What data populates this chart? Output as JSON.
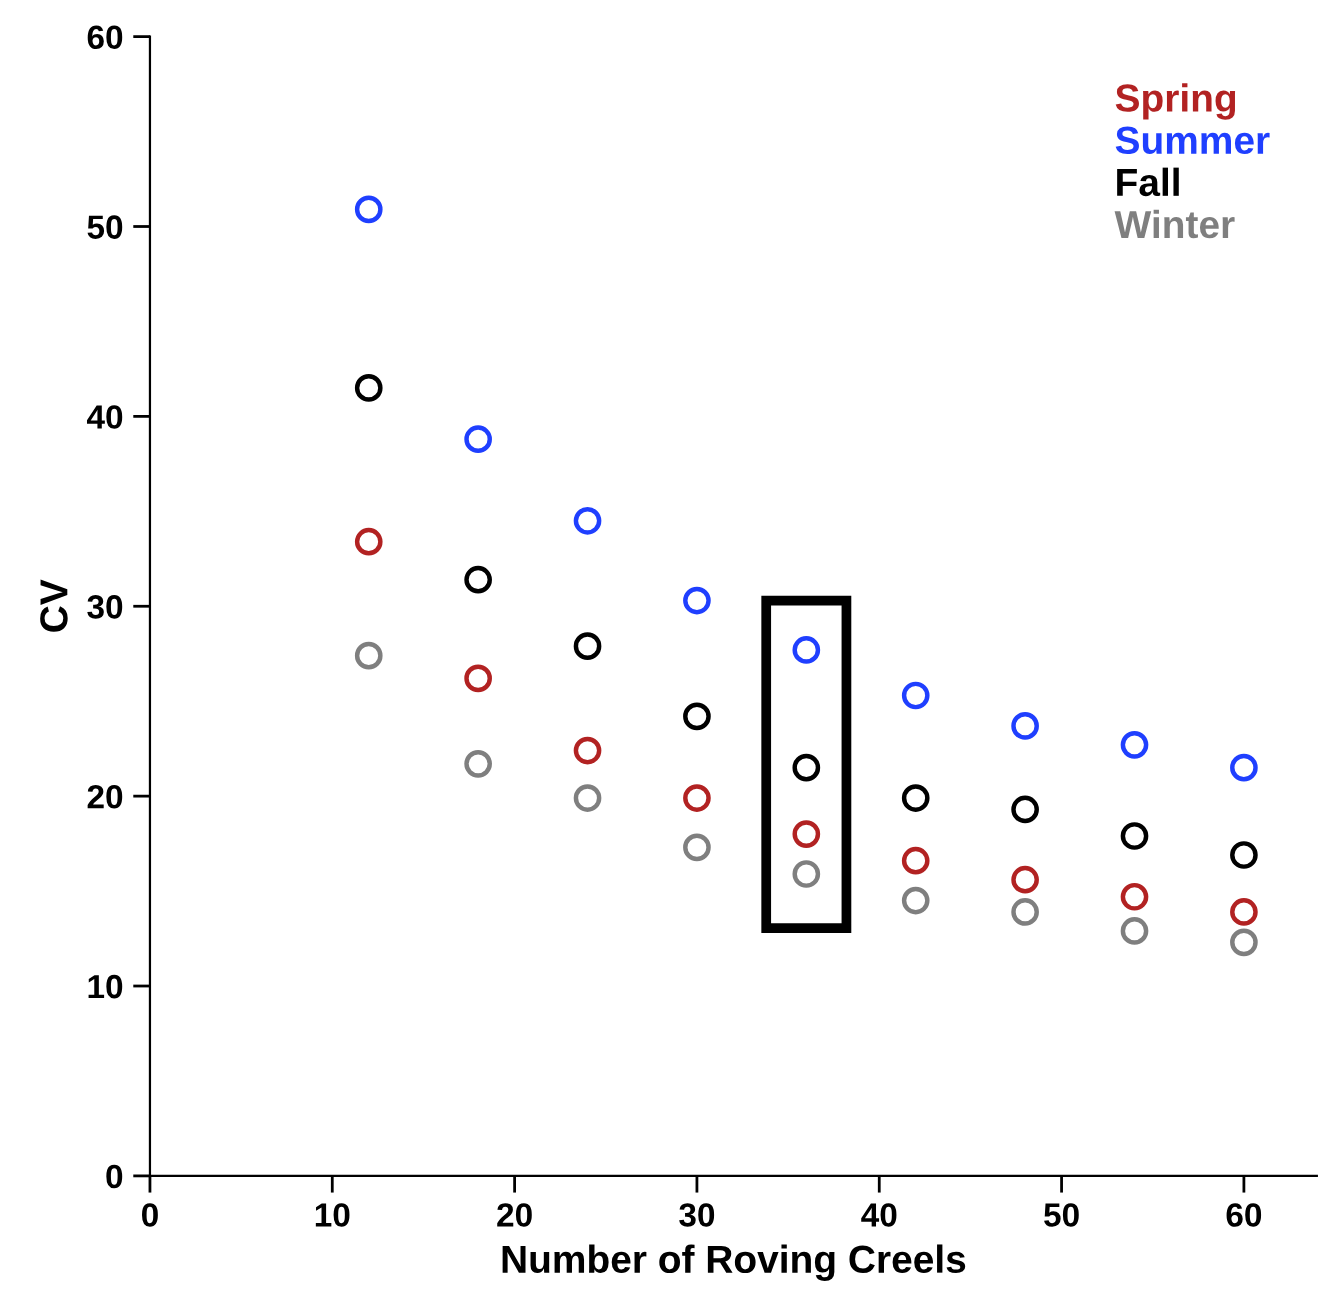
{
  "chart_data": {
    "type": "scatter",
    "xlabel": "Number of Roving Creels",
    "ylabel": "CV",
    "x": [
      12,
      18,
      24,
      30,
      36,
      42,
      48,
      54,
      60
    ],
    "series": [
      {
        "name": "Spring",
        "color": "#b22222",
        "values": [
          33.4,
          26.2,
          22.4,
          19.9,
          18.0,
          16.6,
          15.6,
          14.7,
          13.9
        ]
      },
      {
        "name": "Summer",
        "color": "#1f3fff",
        "values": [
          50.9,
          38.8,
          34.5,
          30.3,
          27.7,
          25.3,
          23.7,
          22.7,
          21.5
        ]
      },
      {
        "name": "Fall",
        "color": "#000000",
        "values": [
          41.5,
          31.4,
          27.9,
          24.2,
          21.5,
          19.9,
          19.3,
          17.9,
          16.9
        ]
      },
      {
        "name": "Winter",
        "color": "#7f7f7f",
        "values": [
          27.4,
          21.7,
          19.9,
          17.3,
          15.9,
          14.5,
          13.9,
          12.9,
          12.3
        ]
      }
    ],
    "xlim": [
      0,
      64
    ],
    "xticks": [
      0,
      10,
      20,
      30,
      40,
      50,
      60
    ],
    "ylim": [
      0,
      60
    ],
    "yticks": [
      0,
      10,
      20,
      30,
      40,
      50,
      60
    ],
    "grid": false,
    "legend": "top right",
    "marker": "circle"
  }
}
